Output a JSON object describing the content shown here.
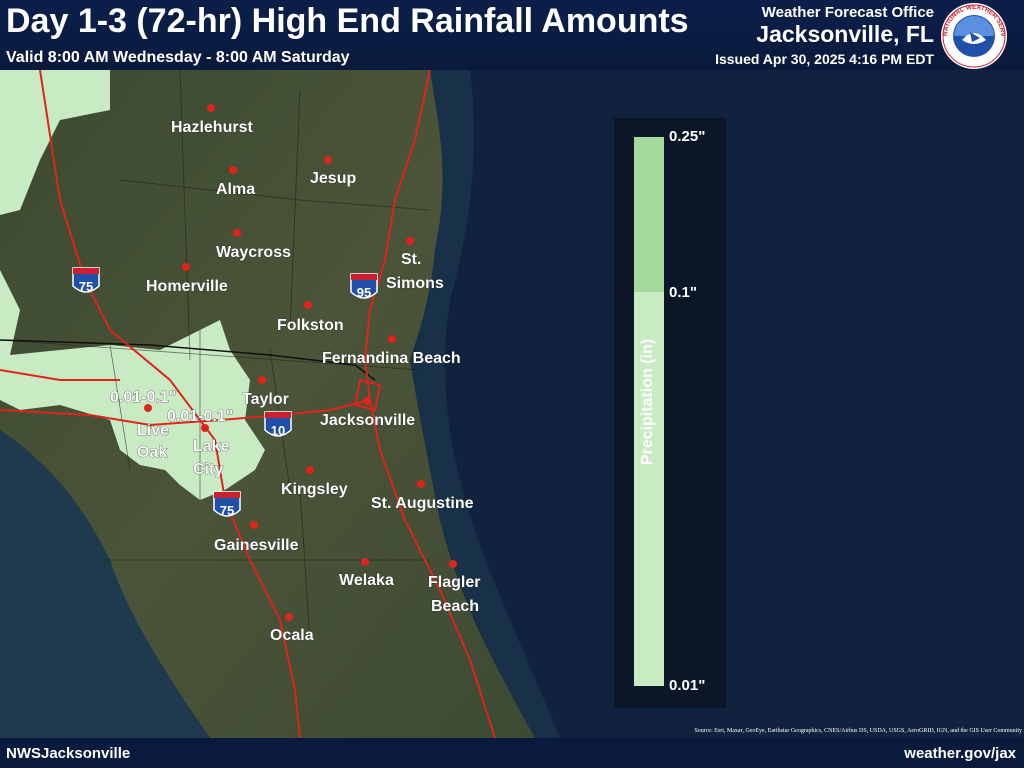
{
  "header": {
    "title": "Day 1-3 (72-hr) High End Rainfall Amounts",
    "valid": "Valid 8:00 AM Wednesday - 8:00 AM Saturday",
    "office_line": "Weather Forecast Office",
    "office_city": "Jacksonville, FL",
    "issued": "Issued Apr 30, 2025 4:16 PM EDT"
  },
  "logo": {
    "text": "NATIONAL WEATHER SERVICE",
    "icon": "nws-logo"
  },
  "cities": {
    "hazlehurst": "Hazlehurst",
    "alma": "Alma",
    "jesup": "Jesup",
    "waycross": "Waycross",
    "st": "St.",
    "simons": "Simons",
    "homerville": "Homerville",
    "folkston": "Folkston",
    "fernandina": "Fernandina Beach",
    "taylor": "Taylor",
    "jacksonville": "Jacksonville",
    "live": "Live",
    "oak": "Oak",
    "lake": "Lake",
    "city": "City",
    "kingsley": "Kingsley",
    "staugustine": "St. Augustine",
    "gainesville": "Gainesville",
    "welaka": "Welaka",
    "flagler": "Flagler",
    "beach": "Beach",
    "ocala": "Ocala"
  },
  "contour_labels": [
    "0.01-0.1\"",
    "0.01-0.1\""
  ],
  "shields": {
    "i75": "75",
    "i95": "95",
    "i10": "10"
  },
  "legend": {
    "title": "Precipitation (in)",
    "ticks": [
      "0.25\"",
      "0.1\"",
      "0.01\""
    ],
    "colors": {
      "upper": "#a3d99b",
      "lower": "#c8ebc3"
    }
  },
  "footer": {
    "left": "NWSJacksonville",
    "right": "weather.gov/jax",
    "source": "Source: Esri, Maxar, GeoEye, Earthstar Geographics, CNES/Airbus DS, USDA, USGS, AeroGRID, IGN, and the GIS User Community"
  },
  "colors": {
    "rain_shade": "#c8ebc3",
    "roads": "#e0241b",
    "city_dot": "#e0241b",
    "ocean": "#10223d"
  }
}
